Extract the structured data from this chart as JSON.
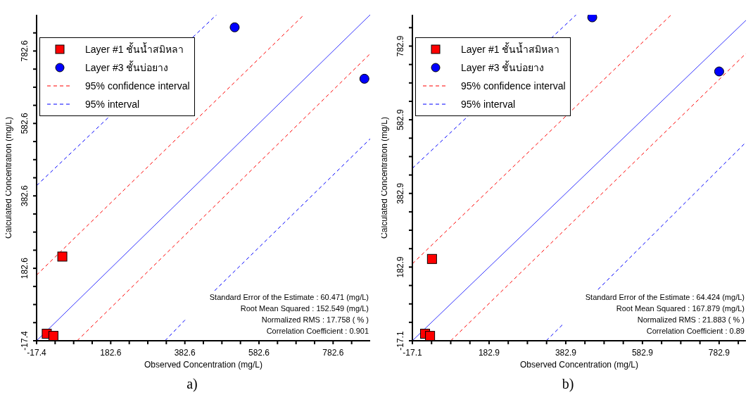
{
  "chart_data": [
    {
      "type": "scatter",
      "xlabel": "Observed Concentration (mg/L)",
      "ylabel": "Calculated Concentration (mg/L)",
      "xlim": [
        -17.4,
        882.6
      ],
      "ylim": [
        -17.4,
        882.6
      ],
      "xticks": [
        -17.4,
        {
          "value": 32.6,
          "label": null
        },
        {
          "value": 82.6,
          "label": null
        },
        {
          "value": 132.6,
          "label": null
        },
        182.6,
        {
          "value": 232.6,
          "label": null
        },
        {
          "value": 282.6,
          "label": null
        },
        {
          "value": 332.6,
          "label": null
        },
        382.6,
        {
          "value": 432.6,
          "label": null
        },
        {
          "value": 482.6,
          "label": null
        },
        {
          "value": 532.6,
          "label": null
        },
        582.6,
        {
          "value": 632.6,
          "label": null
        },
        {
          "value": 682.6,
          "label": null
        },
        {
          "value": 732.6,
          "label": null
        },
        782.6,
        {
          "value": 832.6,
          "label": null
        }
      ],
      "yticks": [
        -17.4,
        {
          "value": 32.6,
          "label": null
        },
        {
          "value": 82.6,
          "label": null
        },
        {
          "value": 132.6,
          "label": null
        },
        182.6,
        {
          "value": 232.6,
          "label": null
        },
        {
          "value": 282.6,
          "label": null
        },
        {
          "value": 332.6,
          "label": null
        },
        382.6,
        {
          "value": 432.6,
          "label": null
        },
        {
          "value": 482.6,
          "label": null
        },
        {
          "value": 532.6,
          "label": null
        },
        582.6,
        {
          "value": 632.6,
          "label": null
        },
        {
          "value": 682.6,
          "label": null
        },
        {
          "value": 732.6,
          "label": null
        },
        782.6,
        {
          "value": 832.6,
          "label": null
        }
      ],
      "legend": "top left",
      "series": [
        {
          "name": "Layer #1 ชั้นน้ำสมิหลา",
          "type": "scatter",
          "marker": "square",
          "color": "#ff0000",
          "x": [
            10,
            28,
            52
          ],
          "values": [
            2,
            -4,
            215
          ]
        },
        {
          "name": "Layer #3 ชั้นบ่อยาง",
          "type": "scatter",
          "marker": "circle",
          "color": "#0000ff",
          "x": [
            517,
            867
          ],
          "values": [
            848,
            706
          ]
        },
        {
          "type": "line",
          "marker": "none",
          "line_style": "solid",
          "color": "#3333ff",
          "x": [
            -17.4,
            882.6
          ],
          "values": [
            -17.4,
            882.6
          ]
        },
        {
          "name": "95% confidence interval",
          "type": "line",
          "marker": "none",
          "line_style": "dashed",
          "color": "#ff0000",
          "x": [
            -17.4,
            704
          ],
          "values": [
            164,
            882.6
          ]
        },
        {
          "type": "line",
          "marker": "none",
          "line_style": "dashed",
          "color": "#ff0000",
          "x": [
            92,
            882.6
          ],
          "values": [
            -17.4,
            775
          ]
        },
        {
          "name": "95% interval",
          "type": "line",
          "marker": "none",
          "line_style": "dashed",
          "color": "#0000ff",
          "x": [
            -17.4,
            468
          ],
          "values": [
            411,
            882.6
          ]
        },
        {
          "type": "line",
          "marker": "none",
          "line_style": "dashed",
          "color": "#0000ff",
          "x": [
            329,
            386,
            420,
            463,
            882.6
          ],
          "values": [
            -17.4,
            43,
            null,
            121,
            540
          ]
        }
      ],
      "annotations": [
        "Standard Error of the Estimate : 60.471 (mg/L)",
        "Root Mean Squared : 152.549 (mg/L)",
        "Normalized RMS : 17.758 ( % )",
        "Correlation Coefficient : 0.901",
        "a)"
      ]
    },
    {
      "type": "scatter",
      "xlabel": "Observed Concentration (mg/L)",
      "ylabel": "Calculated Concentration (mg/L)",
      "xlim": [
        -17.1,
        852.9
      ],
      "ylim": [
        -17.1,
        867.9
      ],
      "xticks": [
        -17.1,
        {
          "value": 32.9,
          "label": null
        },
        {
          "value": 82.9,
          "label": null
        },
        {
          "value": 132.9,
          "label": null
        },
        182.9,
        {
          "value": 232.9,
          "label": null
        },
        {
          "value": 282.9,
          "label": null
        },
        {
          "value": 332.9,
          "label": null
        },
        382.9,
        {
          "value": 432.9,
          "label": null
        },
        {
          "value": 482.9,
          "label": null
        },
        {
          "value": 532.9,
          "label": null
        },
        582.9,
        {
          "value": 632.9,
          "label": null
        },
        {
          "value": 682.9,
          "label": null
        },
        {
          "value": 732.9,
          "label": null
        },
        782.9,
        {
          "value": 832.9,
          "label": null
        }
      ],
      "yticks": [
        -17.1,
        {
          "value": 32.9,
          "label": null
        },
        {
          "value": 82.9,
          "label": null
        },
        {
          "value": 132.9,
          "label": null
        },
        182.9,
        {
          "value": 232.9,
          "label": null
        },
        {
          "value": 282.9,
          "label": null
        },
        {
          "value": 332.9,
          "label": null
        },
        382.9,
        {
          "value": 432.9,
          "label": null
        },
        {
          "value": 482.9,
          "label": null
        },
        {
          "value": 532.9,
          "label": null
        },
        582.9,
        {
          "value": 632.9,
          "label": null
        },
        {
          "value": 682.9,
          "label": null
        },
        {
          "value": 732.9,
          "label": null
        },
        782.9,
        {
          "value": 832.9,
          "label": null
        }
      ],
      "legend": "top left",
      "series": [
        {
          "name": "Layer #1 ชั้นน้ำสมิหลา",
          "type": "scatter",
          "marker": "square",
          "color": "#ff0000",
          "x": [
            16,
            29,
            34
          ],
          "values": [
            2,
            -4,
            205
          ]
        },
        {
          "name": "Layer #3 ชั้นบ่อยาง",
          "type": "scatter",
          "marker": "circle",
          "color": "#0000ff",
          "x": [
            452,
            783
          ],
          "values": [
            861,
            714
          ]
        },
        {
          "type": "line",
          "marker": "none",
          "line_style": "solid",
          "color": "#3333ff",
          "x": [
            -17.1,
            852.9
          ],
          "values": [
            -17.1,
            852.9
          ]
        },
        {
          "name": "95% confidence interval",
          "type": "line",
          "marker": "none",
          "line_style": "dashed",
          "color": "#ff0000",
          "x": [
            -17.1,
            658
          ],
          "values": [
            192,
            867.9
          ]
        },
        {
          "type": "line",
          "marker": "none",
          "line_style": "dashed",
          "color": "#ff0000",
          "x": [
            83,
            852.9
          ],
          "values": [
            -17.1,
            763
          ]
        },
        {
          "name": "95% interval",
          "type": "line",
          "marker": "none",
          "line_style": "dashed",
          "color": "#0000ff",
          "x": [
            -17.1,
            410
          ],
          "values": [
            451,
            867.9
          ]
        },
        {
          "type": "line",
          "marker": "none",
          "line_style": "dashed",
          "color": "#0000ff",
          "x": [
            332,
            375,
            420,
            467,
            852.9
          ],
          "values": [
            -17.1,
            27,
            null,
            122,
            522
          ]
        }
      ],
      "annotations": [
        "Standard Error of the Estimate : 64.424 (mg/L)",
        "Root Mean Squared : 167.879 (mg/L)",
        "Normalized RMS : 21.883 ( % )",
        "Correlation Coefficient : 0.89",
        "b)"
      ]
    }
  ]
}
